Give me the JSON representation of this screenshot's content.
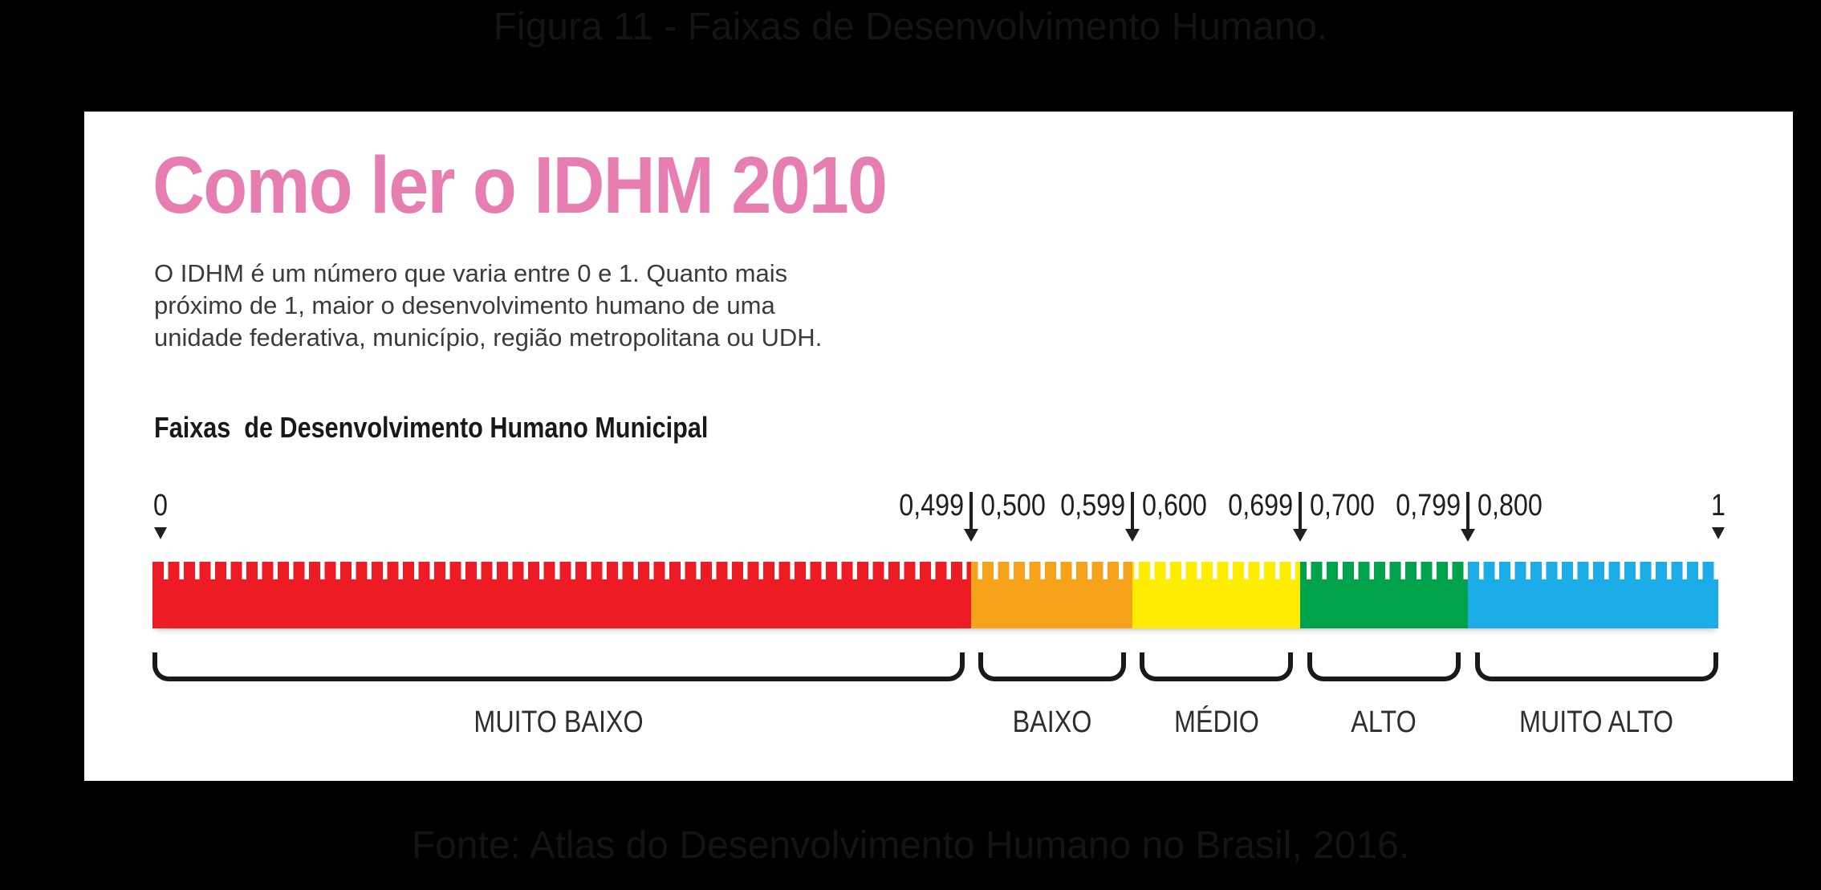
{
  "canvas": {
    "background": "#000000",
    "card_background": "#ffffff"
  },
  "captions": {
    "top": "Figura 11 - Faixas de Desenvolvimento Humano.",
    "bottom": "Fonte: Atlas do Desenvolvimento Humano no Brasil, 2016."
  },
  "card": {
    "title": "Como ler o IDHM 2010",
    "title_color": "#e77eb2",
    "description_lines": [
      "O IDHM é um número que varia entre 0 e 1. Quanto mais",
      "próximo de 1, maior o desenvolvimento humano de uma",
      "unidade federativa, município, região metropolitana ou UDH."
    ],
    "scale_heading": "Faixas  de Desenvolvimento Humano Municipal"
  },
  "chart_data": {
    "type": "banded-scale",
    "title": "Faixas de Desenvolvimento Humano Municipal",
    "axis_range": [
      0,
      1
    ],
    "endpoints": [
      {
        "label": "0",
        "x_pct": 0.5
      },
      {
        "label": "1",
        "x_pct": 100
      }
    ],
    "boundaries": [
      {
        "left_label": "0,499",
        "right_label": "0,500",
        "x_pct": 52.3
      },
      {
        "left_label": "0,599",
        "right_label": "0,600",
        "x_pct": 62.6
      },
      {
        "left_label": "0,699",
        "right_label": "0,700",
        "x_pct": 73.3
      },
      {
        "left_label": "0,799",
        "right_label": "0,800",
        "x_pct": 84.0
      }
    ],
    "bands": [
      {
        "label": "MUITO BAIXO",
        "from": "0",
        "to": "0,499",
        "color": "#ed1c24",
        "width_pct": 52.3
      },
      {
        "label": "BAIXO",
        "from": "0,500",
        "to": "0,599",
        "color": "#f6a31b",
        "width_pct": 10.3
      },
      {
        "label": "MÉDIO",
        "from": "0,600",
        "to": "0,699",
        "color": "#ffec00",
        "width_pct": 10.7
      },
      {
        "label": "ALTO",
        "from": "0,700",
        "to": "0,799",
        "color": "#00a34b",
        "width_pct": 10.7
      },
      {
        "label": "MUITO ALTO",
        "from": "0,800",
        "to": "1",
        "color": "#1cace8",
        "width_pct": 16.0
      }
    ]
  }
}
